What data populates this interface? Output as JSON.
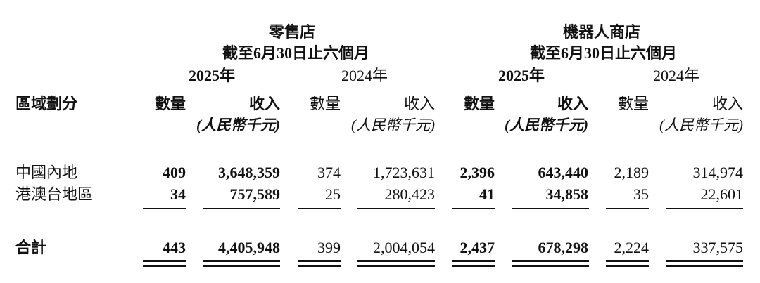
{
  "groups": [
    {
      "title": "零售店",
      "period": "截至6月30日止六個月",
      "year_current": "2025年",
      "year_prior": "2024年"
    },
    {
      "title": "機器人商店",
      "period": "截至6月30日止六個月",
      "year_current": "2025年",
      "year_prior": "2024年"
    }
  ],
  "column_headers": {
    "segment": "區域劃分",
    "quantity": "數量",
    "revenue": "收入",
    "unit": "(人民幣千元)"
  },
  "rows": [
    {
      "label": "中國內地",
      "values": [
        "409",
        "3,648,359",
        "374",
        "1,723,631",
        "2,396",
        "643,440",
        "2,189",
        "314,974"
      ]
    },
    {
      "label": "港澳台地區",
      "values": [
        "34",
        "757,589",
        "25",
        "280,423",
        "41",
        "34,858",
        "35",
        "22,601"
      ]
    }
  ],
  "total": {
    "label": "合計",
    "values": [
      "443",
      "4,405,948",
      "399",
      "2,004,054",
      "2,437",
      "678,298",
      "2,224",
      "337,575"
    ]
  }
}
